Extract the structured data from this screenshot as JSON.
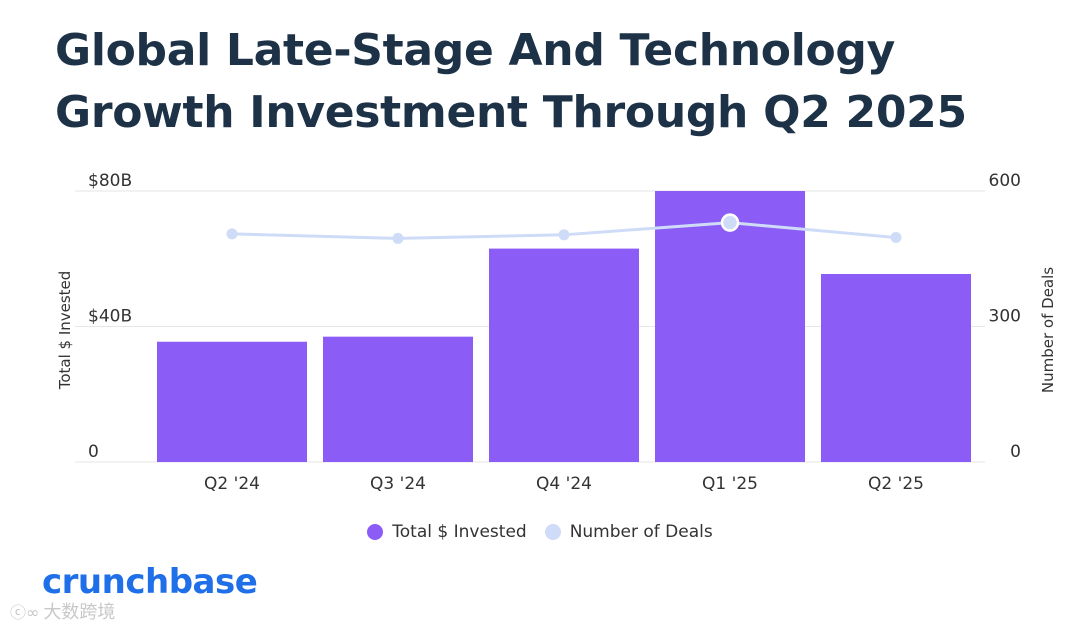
{
  "header": {
    "title_line1": "Global Late-Stage And Technology",
    "title_line2": "Growth Investment Through Q2 2025"
  },
  "colors": {
    "title": "#1d3247",
    "bar": "#8b5cf6",
    "line": "#cfdcf7",
    "marker_stroke": "#ffffff",
    "logo": "#1f6fe8",
    "grid": "#e6e6e6",
    "text": "#333333"
  },
  "chart_data": {
    "type": "bar",
    "title": "Global Late-Stage And Technology Growth Investment Through Q2 2025",
    "categories": [
      "Q2 '24",
      "Q3 '24",
      "Q4 '24",
      "Q1 '25",
      "Q2 '25"
    ],
    "series": [
      {
        "name": "Total $ Invested",
        "type": "bar",
        "axis": "left",
        "values": [
          35.5,
          37,
          63,
          80,
          55.5
        ]
      },
      {
        "name": "Number of Deals",
        "type": "line",
        "axis": "right",
        "values": [
          505,
          495,
          503,
          530,
          497
        ]
      }
    ],
    "y_left": {
      "label": "Total $ Invested",
      "ylim": [
        0,
        80
      ],
      "ticks": [
        0,
        40,
        80
      ],
      "tick_labels": [
        "0",
        "$40B",
        "$80B"
      ]
    },
    "y_right": {
      "label": "Number of Deals",
      "ylim": [
        0,
        600
      ],
      "ticks": [
        0,
        300,
        600
      ],
      "tick_labels": [
        "0",
        "300",
        "600"
      ]
    },
    "highlighted_point": 3,
    "grid": true,
    "legend_position": "bottom-center"
  },
  "legend": {
    "items": [
      {
        "label": "Total $ Invested",
        "color": "#8b5cf6"
      },
      {
        "label": "Number of Deals",
        "color": "#cfdcf7"
      }
    ]
  },
  "branding": {
    "logo_text": "crunchbase",
    "watermark_text": "大数跨境"
  }
}
